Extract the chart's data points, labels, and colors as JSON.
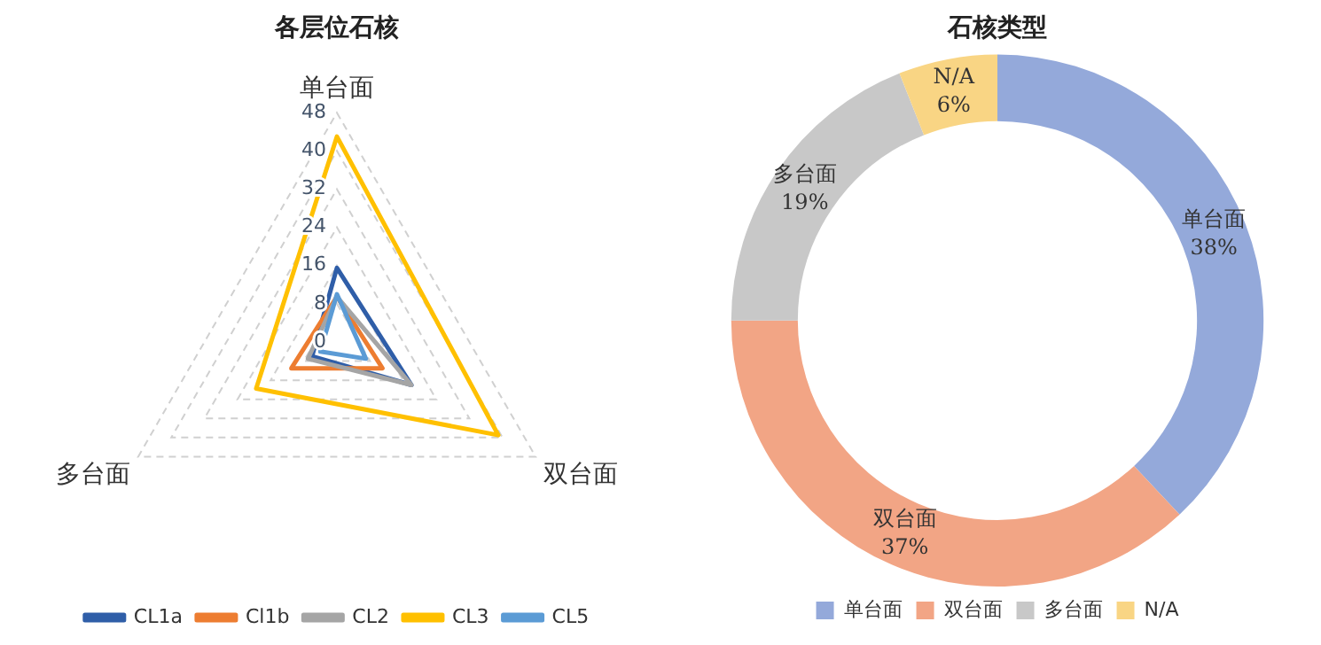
{
  "chart_data": [
    {
      "type": "radar",
      "title": "各层位石核",
      "categories": [
        "单台面",
        "双台面",
        "多台面"
      ],
      "ylim": [
        0,
        48
      ],
      "yticks": [
        0,
        8,
        16,
        24,
        32,
        40,
        48
      ],
      "grid": true,
      "legend": "bottom",
      "series": [
        {
          "name": "CL1a",
          "color": "#2f5ea8",
          "values": [
            15.5,
            18,
            6
          ]
        },
        {
          "name": "Cl1b",
          "color": "#ed7d31",
          "values": [
            9.5,
            11,
            11
          ]
        },
        {
          "name": "CL2",
          "color": "#a5a5a5",
          "values": [
            9.5,
            18,
            7
          ]
        },
        {
          "name": "CL3",
          "color": "#ffc000",
          "values": [
            43,
            39,
            19.5
          ]
        },
        {
          "name": "CL5",
          "color": "#5b9bd5",
          "values": [
            10,
            7,
            4
          ]
        }
      ]
    },
    {
      "type": "donut",
      "title": "石核类型",
      "categories": [
        "单台面",
        "双台面",
        "多台面",
        "N/A"
      ],
      "values": [
        38,
        37,
        19,
        6
      ],
      "value_labels": [
        "38%",
        "37%",
        "19%",
        "6%"
      ],
      "colors": [
        "#94a9da",
        "#f2a585",
        "#c8c8c8",
        "#f9d584"
      ],
      "data_labels": true,
      "legend": "bottom"
    }
  ]
}
